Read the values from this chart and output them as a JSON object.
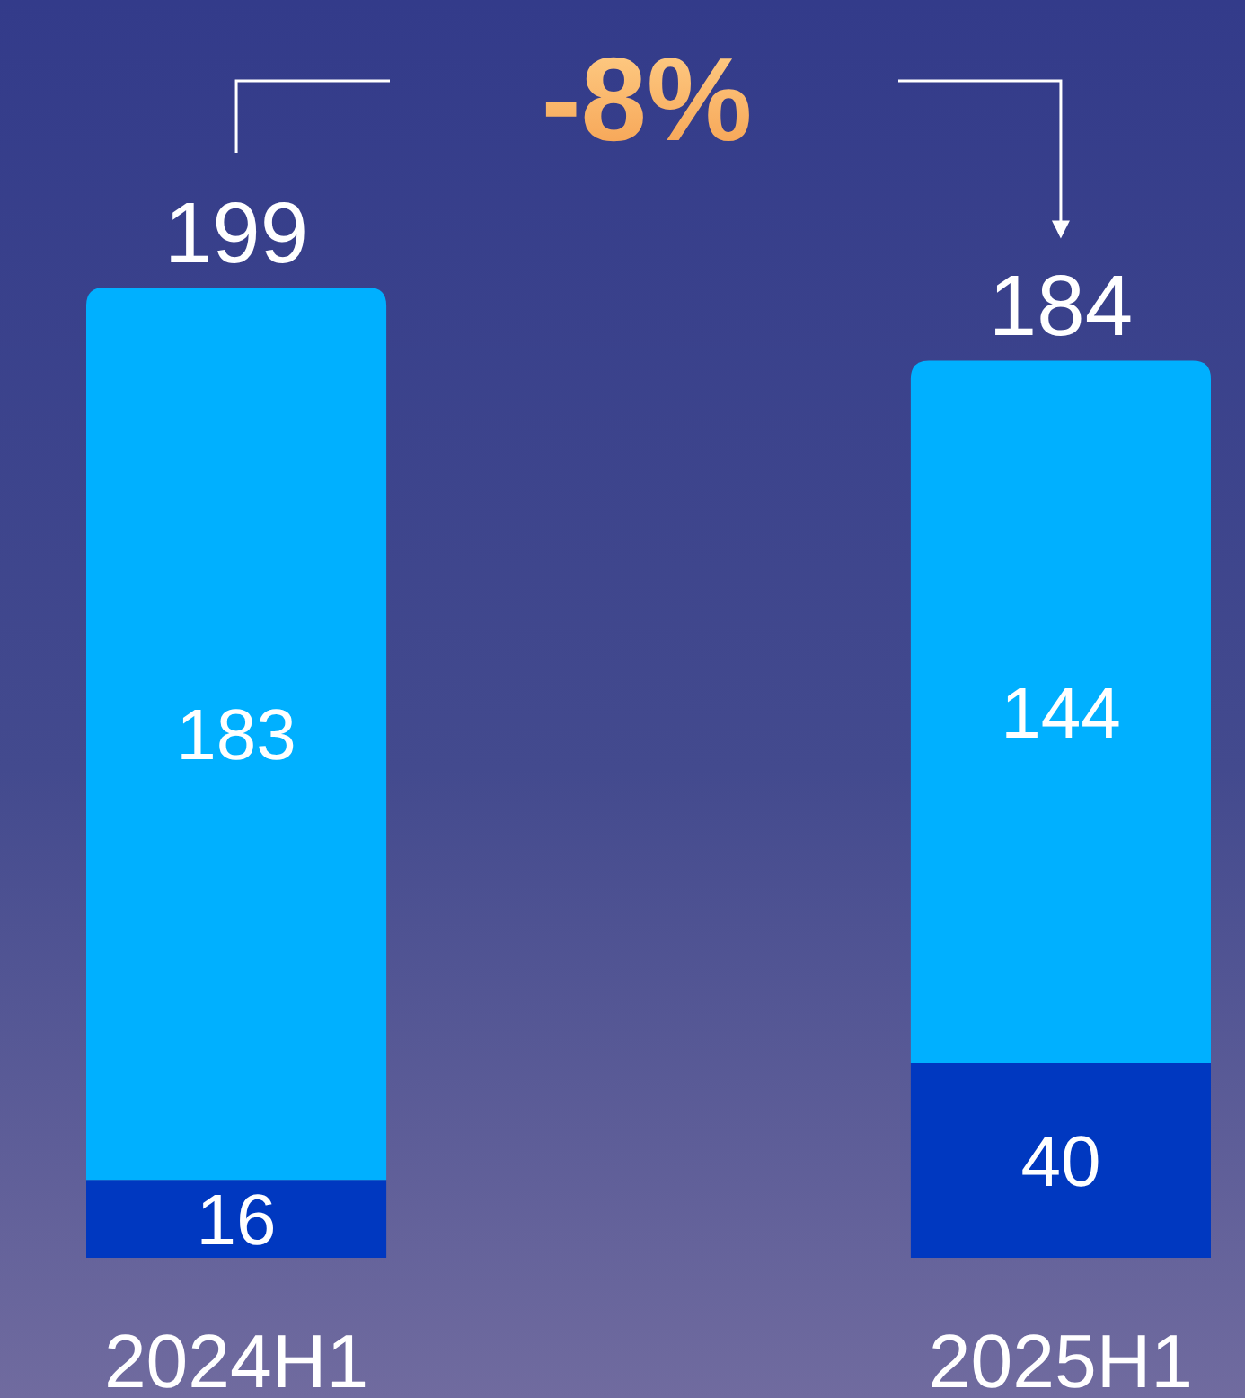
{
  "chart_data": {
    "type": "bar",
    "stacked": true,
    "categories": [
      "2024H1",
      "2025H1"
    ],
    "series": [
      {
        "color": "#0038c0",
        "values": [
          16,
          40
        ]
      },
      {
        "color": "#00b0ff",
        "values": [
          183,
          144
        ]
      }
    ],
    "data_labels": true,
    "totals": [
      "199",
      "184"
    ],
    "annotations": [
      "-8%"
    ]
  }
}
